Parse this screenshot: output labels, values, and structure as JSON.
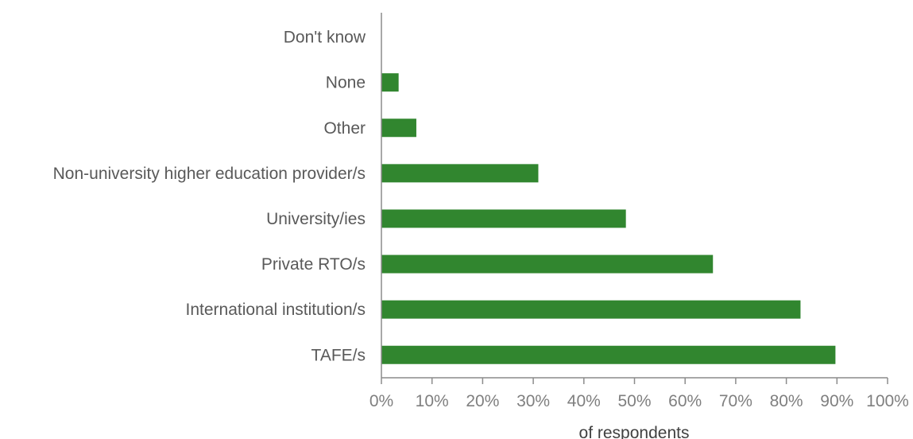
{
  "chart_data": {
    "type": "bar",
    "orientation": "horizontal",
    "categories": [
      "Don't know",
      "None",
      "Other",
      "Non-university higher education provider/s",
      "University/ies",
      "Private RTO/s",
      "International institution/s",
      "TAFE/s"
    ],
    "values": [
      0,
      3.4,
      6.9,
      31,
      48.3,
      65.5,
      82.8,
      89.7
    ],
    "xlabel": "of respondents",
    "ylabel": "",
    "xlim": [
      0,
      100
    ],
    "ticks": [
      "0%",
      "10%",
      "20%",
      "30%",
      "40%",
      "50%",
      "60%",
      "70%",
      "80%",
      "90%",
      "100%"
    ],
    "tick_values": [
      0,
      10,
      20,
      30,
      40,
      50,
      60,
      70,
      80,
      90,
      100
    ],
    "grid": false,
    "legend": "none",
    "bar_color": "#31862f",
    "axis_color": "#8c8c8c"
  }
}
